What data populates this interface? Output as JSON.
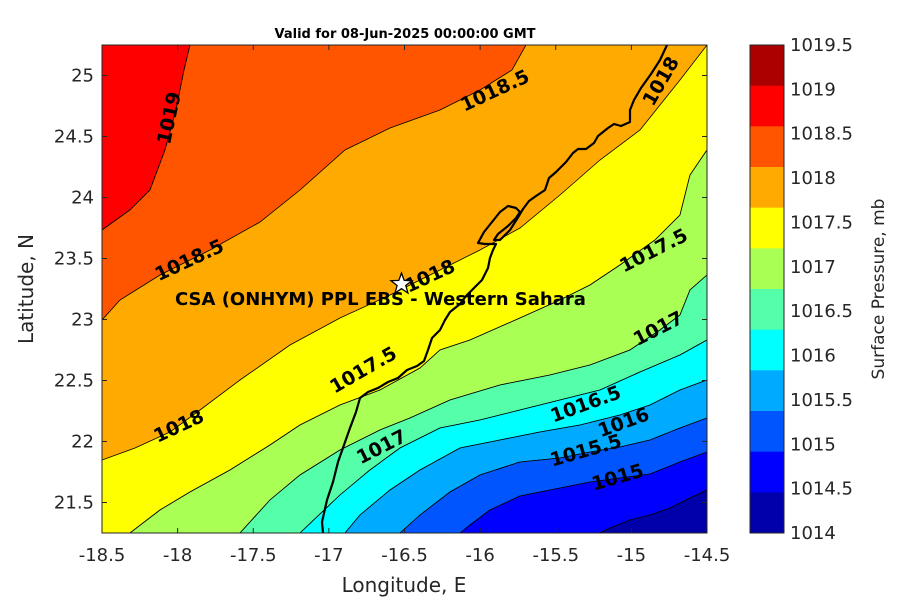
{
  "title": "Valid for 08-Jun-2025 00:00:00 GMT",
  "xlabel": "Longitude, E",
  "ylabel": "Latitude, N",
  "colorbar_label": "Surface Pressure, mb",
  "x_ticks": [
    "-18.5",
    "-18",
    "-17.5",
    "-17",
    "-16.5",
    "-16",
    "-15.5",
    "-15",
    "-14.5"
  ],
  "y_ticks": [
    "25",
    "24.5",
    "24",
    "23.5",
    "23",
    "22.5",
    "22",
    "21.5"
  ],
  "colorbar_ticks": [
    "1019.5",
    "1019",
    "1018.5",
    "1018",
    "1017.5",
    "1017",
    "1016.5",
    "1016",
    "1015.5",
    "1015",
    "1014.5",
    "1014"
  ],
  "colorbar_colors": [
    "#aa0000",
    "#ff0000",
    "#ff5500",
    "#ffaa00",
    "#ffff00",
    "#aaff55",
    "#55ffaa",
    "#00ffff",
    "#00aaff",
    "#0055ff",
    "#0000ff",
    "#0000aa"
  ],
  "station": {
    "label": "CSA (ONHYM) PPL EBS  - Western Sahara",
    "lon": -16.52,
    "lat": 23.29,
    "icon": "star-icon"
  },
  "chart_data": {
    "type": "heatmap",
    "subtype": "filled contour map",
    "title": "Valid for 08-Jun-2025 00:00:00 GMT",
    "xlabel": "Longitude, E",
    "ylabel": "Latitude, N",
    "xlim": [
      -18.5,
      -14.5
    ],
    "ylim": [
      21.25,
      25.25
    ],
    "colorbar_label": "Surface Pressure, mb",
    "colorbar_range": [
      1014,
      1019.5
    ],
    "contour_levels": [
      1014.5,
      1015,
      1015.5,
      1016,
      1016.5,
      1017,
      1017.5,
      1018,
      1018.5,
      1019
    ],
    "contour_labels": [
      {
        "text": "1019",
        "lon": -18.05,
        "lat": 24.65
      },
      {
        "text": "1018.5",
        "lon": -15.9,
        "lat": 24.87
      },
      {
        "text": "1018.5",
        "lon": -17.92,
        "lat": 23.48
      },
      {
        "text": "1018",
        "lon": -14.8,
        "lat": 24.95
      },
      {
        "text": "1018",
        "lon": -16.33,
        "lat": 23.35
      },
      {
        "text": "1018",
        "lon": -17.99,
        "lat": 22.12
      },
      {
        "text": "1017.5",
        "lon": -14.85,
        "lat": 23.56
      },
      {
        "text": "1017.5",
        "lon": -16.77,
        "lat": 22.58
      },
      {
        "text": "1017",
        "lon": -14.82,
        "lat": 22.92
      },
      {
        "text": "1017",
        "lon": -16.65,
        "lat": 21.95
      },
      {
        "text": "1016.5",
        "lon": -15.3,
        "lat": 22.3
      },
      {
        "text": "1016",
        "lon": -15.05,
        "lat": 22.15
      },
      {
        "text": "1015.5",
        "lon": -15.3,
        "lat": 21.92
      },
      {
        "text": "1015",
        "lon": -15.09,
        "lat": 21.7
      }
    ]
  }
}
